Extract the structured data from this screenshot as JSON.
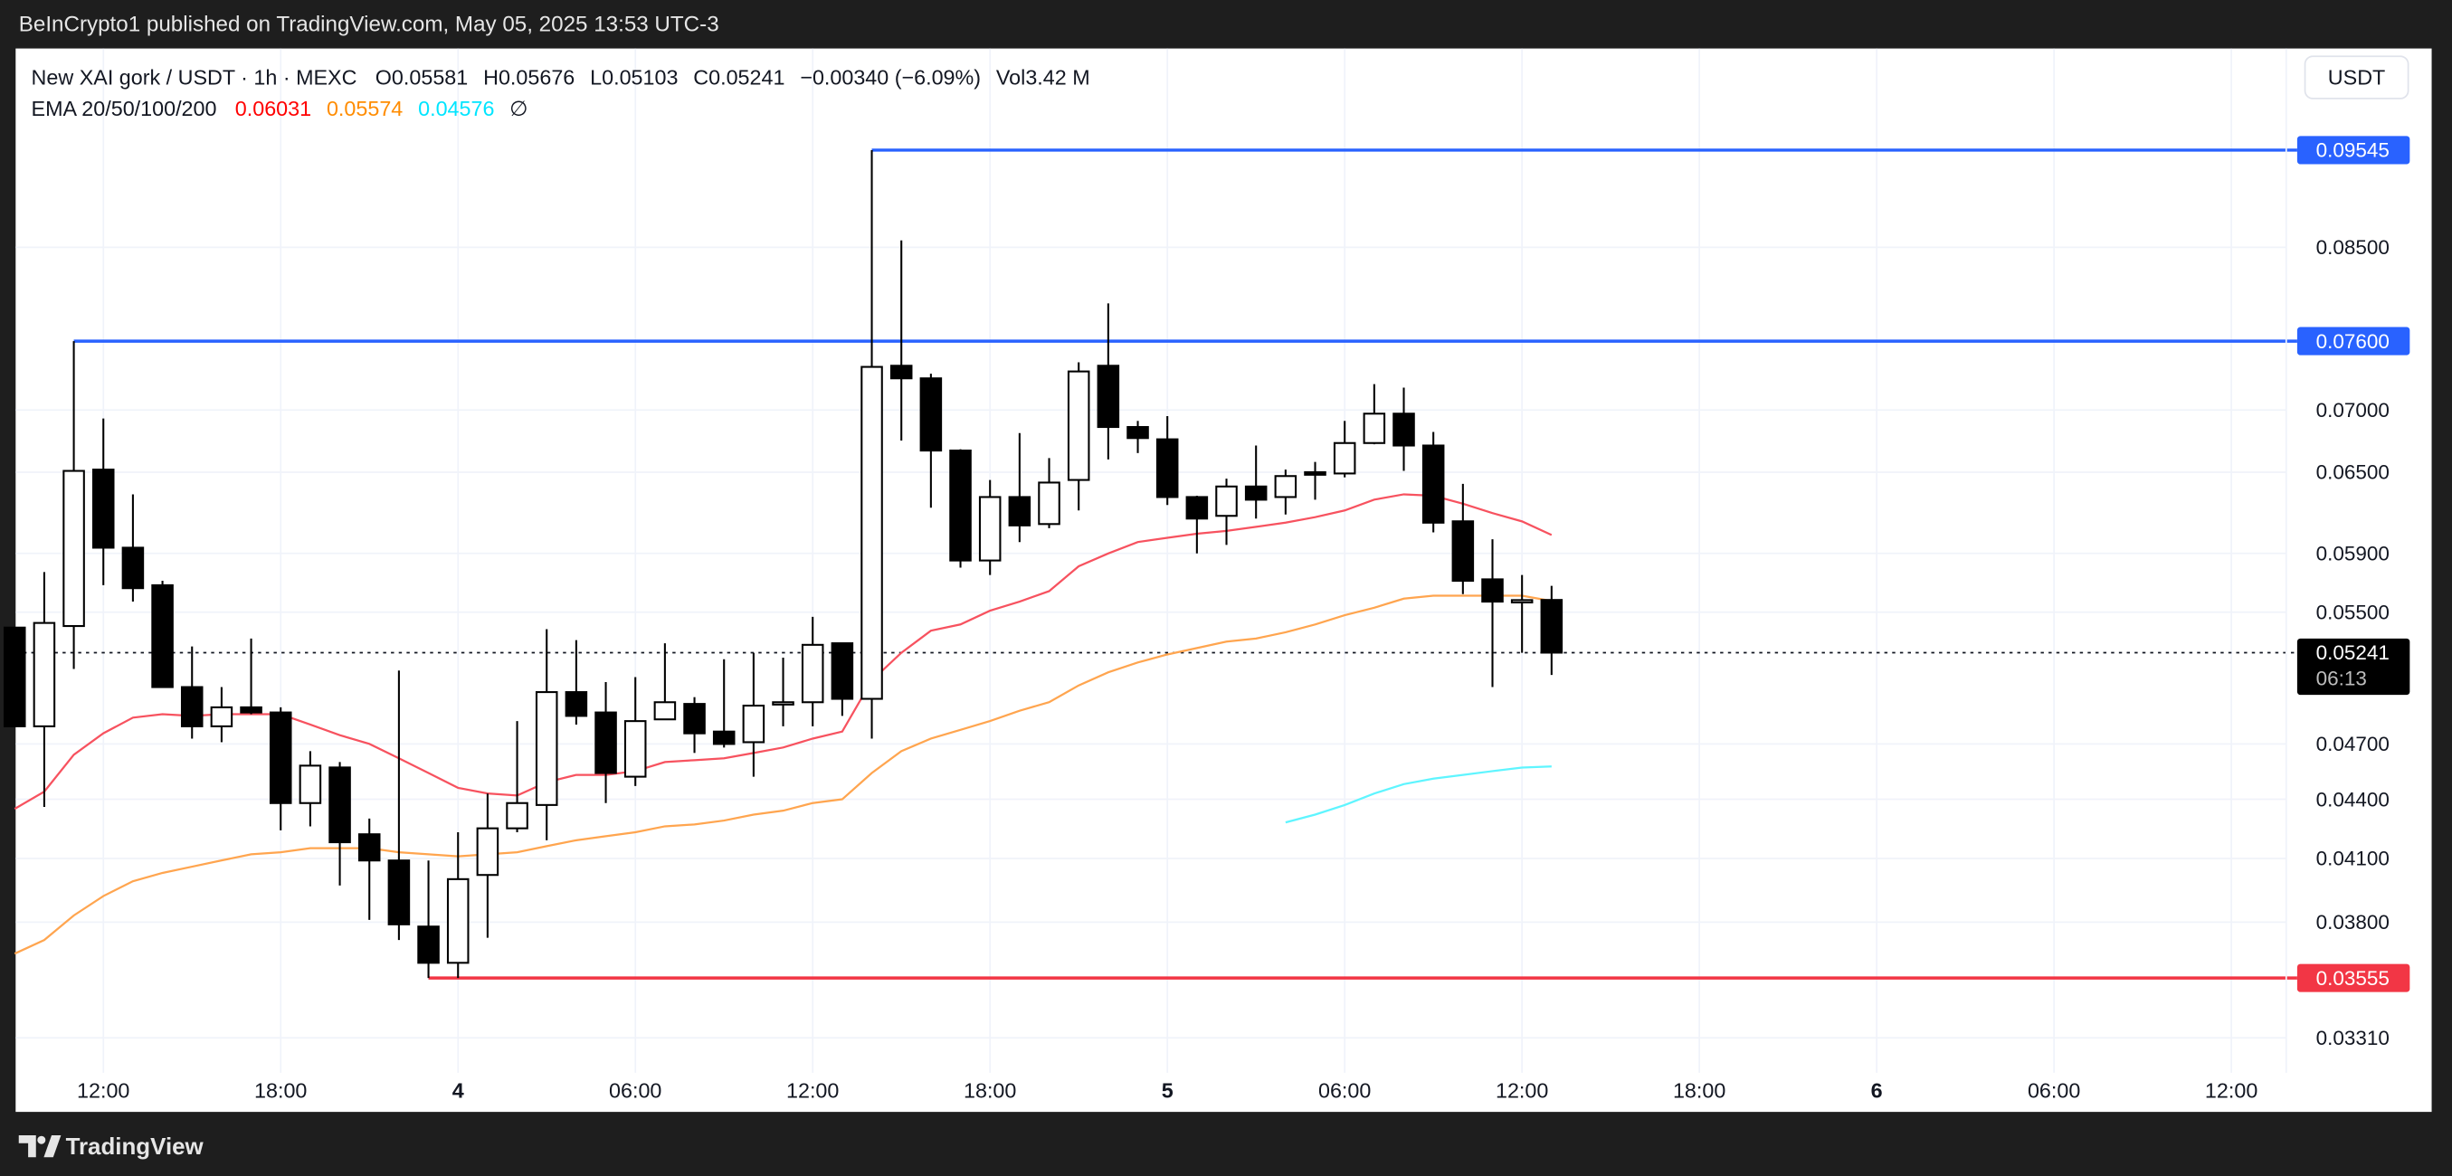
{
  "header": {
    "published": "BeInCrypto1 published on TradingView.com, May 05, 2025 13:53 UTC-3"
  },
  "legend": {
    "symbol": "New XAI gork / USDT · 1h · MEXC",
    "open": "O0.05581",
    "high": "H0.05676",
    "low": "L0.05103",
    "close": "C0.05241",
    "change": "−0.00340 (−6.09%)",
    "volume": "Vol3.42 M",
    "ema_label": "EMA 20/50/100/200",
    "ema20": "0.06031",
    "ema50": "0.05574",
    "ema100": "0.04576",
    "ema200_icon": "∅"
  },
  "price_axis": {
    "currency_button": "USDT",
    "ticks": [
      "0.08500",
      "0.07000",
      "0.06500",
      "0.05900",
      "0.05500",
      "0.04700",
      "0.04400",
      "0.04100",
      "0.03800",
      "0.03310"
    ],
    "tick_values": [
      0.085,
      0.07,
      0.065,
      0.059,
      0.055,
      0.047,
      0.044,
      0.041,
      0.038,
      0.0331
    ],
    "current_price": "0.05241",
    "countdown": "06:13"
  },
  "levels": [
    {
      "label": "0.09545",
      "value": 0.09545,
      "color": "#2962ff",
      "from_candle": 29
    },
    {
      "label": "0.07600",
      "value": 0.076,
      "color": "#2962ff",
      "from_candle": 2
    },
    {
      "label": "0.03555",
      "value": 0.03555,
      "color": "#f23645",
      "from_candle": 14
    }
  ],
  "time_axis": {
    "labels": [
      "12:00",
      "18:00",
      "4",
      "06:00",
      "12:00",
      "18:00",
      "5",
      "06:00",
      "12:00",
      "18:00",
      "6",
      "06:00",
      "12:00"
    ],
    "hours_from_first_candle": [
      3,
      9,
      15,
      21,
      27,
      33,
      39,
      45,
      51,
      57,
      63,
      69,
      75
    ],
    "day_labels": [
      "4",
      "5",
      "6"
    ]
  },
  "footer": {
    "brand": "TradingView"
  },
  "colors": {
    "ema20": "#f7525f",
    "ema50": "#ffa54f",
    "ema100": "#5ff5ff",
    "blue_level": "#2962ff",
    "red_level": "#f23645"
  },
  "chart_data": {
    "type": "candlestick",
    "title": "New XAI gork / USDT · 1h · MEXC",
    "interval": "1h",
    "first_candle": "May 3 09:00",
    "y_scale": "log",
    "ylim": [
      0.0325,
      0.0985
    ],
    "candles": [
      [
        0.054,
        0.054,
        0.048,
        0.048
      ],
      [
        0.048,
        0.0577,
        0.0436,
        0.0543
      ],
      [
        0.0541,
        0.076,
        0.0514,
        0.0651
      ],
      [
        0.0652,
        0.0693,
        0.0568,
        0.0594
      ],
      [
        0.0594,
        0.0633,
        0.0557,
        0.0566
      ],
      [
        0.0568,
        0.0571,
        0.0503,
        0.0503
      ],
      [
        0.0503,
        0.0528,
        0.0473,
        0.048
      ],
      [
        0.048,
        0.0503,
        0.0471,
        0.0491
      ],
      [
        0.0491,
        0.0533,
        0.0487,
        0.0488
      ],
      [
        0.0488,
        0.0491,
        0.0424,
        0.0438
      ],
      [
        0.0438,
        0.0466,
        0.0426,
        0.0458
      ],
      [
        0.0457,
        0.046,
        0.0397,
        0.0418
      ],
      [
        0.0422,
        0.043,
        0.0381,
        0.0409
      ],
      [
        0.0409,
        0.0513,
        0.0372,
        0.0379
      ],
      [
        0.0378,
        0.0409,
        0.03555,
        0.0362
      ],
      [
        0.0362,
        0.0423,
        0.03555,
        0.04
      ],
      [
        0.0402,
        0.0443,
        0.0373,
        0.0425
      ],
      [
        0.0425,
        0.0483,
        0.0423,
        0.0438
      ],
      [
        0.0437,
        0.0539,
        0.0419,
        0.05
      ],
      [
        0.05,
        0.0532,
        0.0481,
        0.0486
      ],
      [
        0.0488,
        0.0506,
        0.0438,
        0.0454
      ],
      [
        0.0452,
        0.0509,
        0.0447,
        0.0483
      ],
      [
        0.0484,
        0.053,
        0.0484,
        0.0494
      ],
      [
        0.0493,
        0.0497,
        0.0465,
        0.0476
      ],
      [
        0.0477,
        0.052,
        0.0468,
        0.047
      ],
      [
        0.0471,
        0.0524,
        0.0452,
        0.0492
      ],
      [
        0.0493,
        0.0521,
        0.048,
        0.0494
      ],
      [
        0.0494,
        0.0547,
        0.048,
        0.0529
      ],
      [
        0.053,
        0.053,
        0.0486,
        0.0496
      ],
      [
        0.0496,
        0.09545,
        0.0473,
        0.0737
      ],
      [
        0.0738,
        0.0857,
        0.0675,
        0.0727
      ],
      [
        0.0727,
        0.0731,
        0.0623,
        0.0667
      ],
      [
        0.0667,
        0.0668,
        0.058,
        0.0585
      ],
      [
        0.0585,
        0.0644,
        0.0575,
        0.0631
      ],
      [
        0.0631,
        0.0681,
        0.0598,
        0.061
      ],
      [
        0.0611,
        0.0661,
        0.0608,
        0.0642
      ],
      [
        0.0644,
        0.0741,
        0.0621,
        0.0733
      ],
      [
        0.0738,
        0.0795,
        0.066,
        0.0686
      ],
      [
        0.0686,
        0.0691,
        0.0665,
        0.0677
      ],
      [
        0.0676,
        0.0695,
        0.0625,
        0.0631
      ],
      [
        0.0631,
        0.0632,
        0.059,
        0.0615
      ],
      [
        0.0617,
        0.0645,
        0.0596,
        0.0639
      ],
      [
        0.0639,
        0.0671,
        0.0615,
        0.0629
      ],
      [
        0.0631,
        0.0652,
        0.0618,
        0.0647
      ],
      [
        0.065,
        0.0658,
        0.0629,
        0.0648
      ],
      [
        0.0649,
        0.0691,
        0.0646,
        0.0673
      ],
      [
        0.0673,
        0.0722,
        0.0672,
        0.0697
      ],
      [
        0.0697,
        0.0719,
        0.0651,
        0.0671
      ],
      [
        0.0671,
        0.0682,
        0.0605,
        0.0612
      ],
      [
        0.0613,
        0.0641,
        0.0562,
        0.0571
      ],
      [
        0.0572,
        0.06,
        0.0503,
        0.0557
      ],
      [
        0.0557,
        0.0575,
        0.0524,
        0.0558
      ],
      [
        0.05581,
        0.05676,
        0.05103,
        0.05241
      ]
    ],
    "candle_fields": [
      "open",
      "high",
      "low",
      "close"
    ],
    "series": [
      {
        "name": "EMA 20",
        "start_index": 0,
        "values": [
          0.0435,
          0.0444,
          0.0464,
          0.0476,
          0.0485,
          0.0487,
          0.0486,
          0.0487,
          0.0487,
          0.0487,
          0.0481,
          0.0475,
          0.047,
          0.0462,
          0.0454,
          0.0446,
          0.0443,
          0.0442,
          0.0449,
          0.0453,
          0.0453,
          0.0455,
          0.046,
          0.0461,
          0.0462,
          0.0465,
          0.0468,
          0.0473,
          0.0477,
          0.0507,
          0.0524,
          0.0538,
          0.0542,
          0.0551,
          0.0557,
          0.0564,
          0.0581,
          0.059,
          0.0598,
          0.0601,
          0.0604,
          0.0606,
          0.0609,
          0.0612,
          0.0616,
          0.0621,
          0.0629,
          0.0633,
          0.0632,
          0.0626,
          0.0619,
          0.0613,
          0.06031
        ]
      },
      {
        "name": "EMA 50",
        "start_index": 0,
        "values": [
          0.0366,
          0.0372,
          0.0383,
          0.0392,
          0.0399,
          0.0403,
          0.0406,
          0.0409,
          0.0412,
          0.0413,
          0.0415,
          0.0415,
          0.0415,
          0.0413,
          0.0412,
          0.0411,
          0.0412,
          0.0413,
          0.0416,
          0.0419,
          0.0421,
          0.0423,
          0.0426,
          0.0427,
          0.0429,
          0.0432,
          0.0434,
          0.0438,
          0.044,
          0.0454,
          0.0466,
          0.0473,
          0.0478,
          0.0483,
          0.0489,
          0.0494,
          0.0504,
          0.0512,
          0.0518,
          0.0523,
          0.0527,
          0.0531,
          0.0533,
          0.0537,
          0.0542,
          0.0548,
          0.0553,
          0.0559,
          0.0561,
          0.0561,
          0.0561,
          0.0561,
          0.05574
        ]
      },
      {
        "name": "EMA 100",
        "start_index": 43,
        "values": [
          0.0428,
          0.0432,
          0.0437,
          0.0443,
          0.0448,
          0.0451,
          0.0453,
          0.0455,
          0.0457,
          0.04576
        ]
      }
    ]
  }
}
